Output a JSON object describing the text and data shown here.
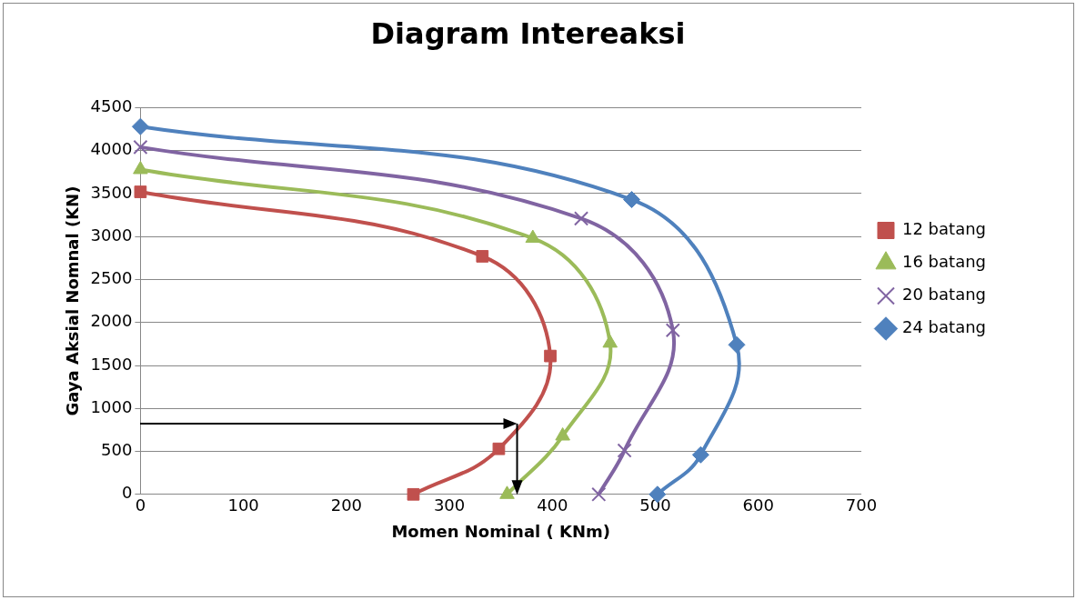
{
  "chart_data": {
    "type": "line",
    "title": "Diagram Intereaksi",
    "xlabel": "Momen Nominal ( KNm)",
    "ylabel": "Gaya Aksial Nomnal (KN)",
    "xlim": [
      0,
      700
    ],
    "xticks": [
      0,
      100,
      200,
      300,
      400,
      500,
      600,
      700
    ],
    "ylim": [
      0,
      4500
    ],
    "yticks": [
      0,
      500,
      1000,
      1500,
      2000,
      2500,
      3000,
      3500,
      4000,
      4500
    ],
    "grid": "y",
    "legend": "right",
    "series": [
      {
        "name": "12 batang",
        "color": "#c0504d",
        "marker": "square",
        "x": [
          0,
          332,
          398,
          348,
          265
        ],
        "values": [
          3520,
          2770,
          1610,
          530,
          0
        ]
      },
      {
        "name": "16 batang",
        "color": "#9bbb59",
        "marker": "triangle",
        "x": [
          0,
          381,
          456,
          410,
          356
        ],
        "values": [
          3780,
          2980,
          1760,
          680,
          0
        ]
      },
      {
        "name": "20 batang",
        "color": "#8064a2",
        "marker": "cross",
        "x": [
          0,
          428,
          517,
          470,
          445
        ],
        "values": [
          4040,
          3210,
          1910,
          510,
          0
        ]
      },
      {
        "name": "24 batang",
        "color": "#4f81bd",
        "marker": "diamond",
        "x": [
          0,
          477,
          579,
          544,
          502
        ],
        "values": [
          4280,
          3430,
          1740,
          460,
          0
        ]
      }
    ]
  }
}
